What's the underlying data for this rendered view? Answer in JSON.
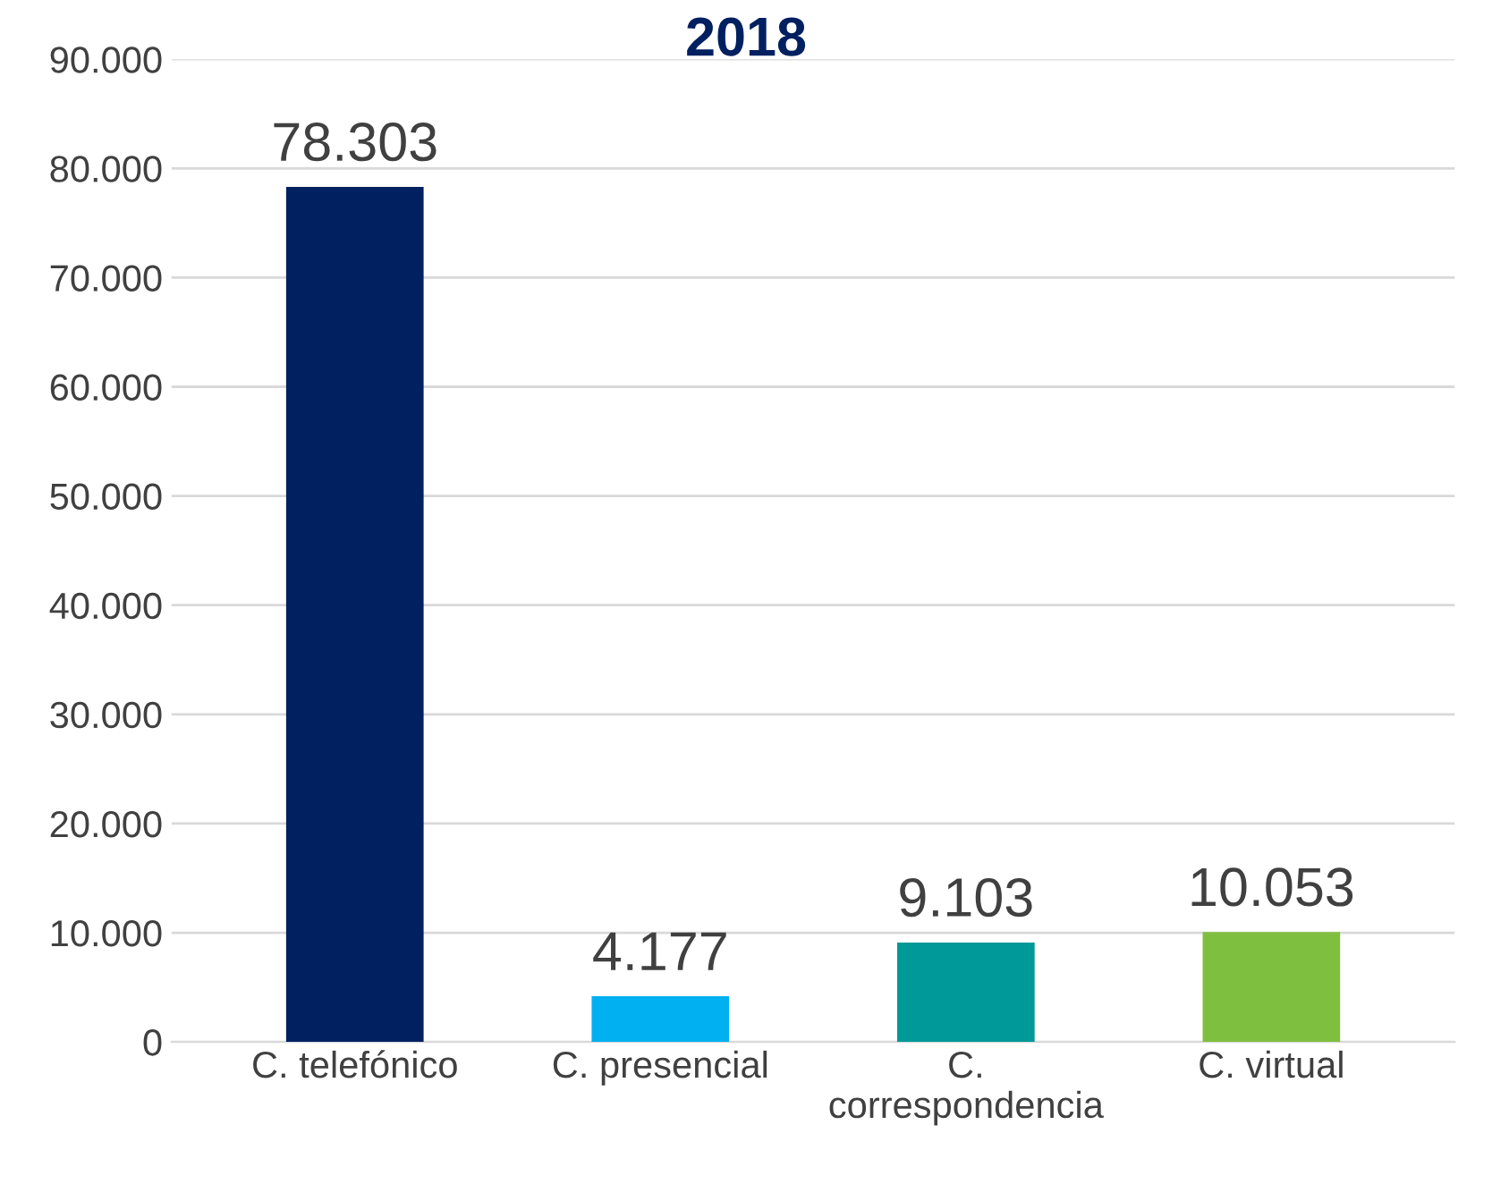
{
  "chart_data": {
    "type": "bar",
    "title": "2018",
    "categories": [
      "C. telefónico",
      "C. presencial",
      "C. correspondencia",
      "C. virtual"
    ],
    "values": [
      78303,
      4177,
      9103,
      10053
    ],
    "colors": [
      "#002060",
      "#00b0f0",
      "#009999",
      "#7fbf3f"
    ],
    "value_labels": [
      "78.303",
      "4.177",
      "9.103",
      "10.053"
    ],
    "ylim": [
      0,
      90000
    ],
    "yticks": [
      {
        "value": 0,
        "label": "0"
      },
      {
        "value": 10000,
        "label": "10.000"
      },
      {
        "value": 20000,
        "label": "20.000"
      },
      {
        "value": 30000,
        "label": "30.000"
      },
      {
        "value": 40000,
        "label": "40.000"
      },
      {
        "value": 50000,
        "label": "50.000"
      },
      {
        "value": 60000,
        "label": "60.000"
      },
      {
        "value": 70000,
        "label": "70.000"
      },
      {
        "value": 80000,
        "label": "80.000"
      },
      {
        "value": 90000,
        "label": "90.000"
      }
    ],
    "grid": "y"
  }
}
